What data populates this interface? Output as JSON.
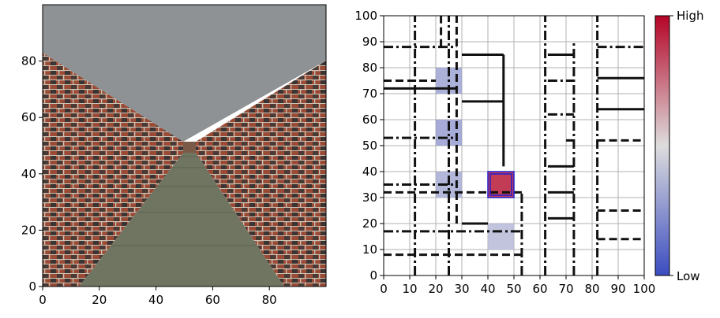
{
  "chart_data": [
    {
      "type": "image",
      "panel": "first-person-view",
      "xlim": [
        0,
        100
      ],
      "ylim": [
        0,
        100
      ],
      "x_ticks": [
        0,
        20,
        40,
        60,
        80
      ],
      "y_ticks": [
        0,
        20,
        40,
        60,
        80
      ],
      "colors": {
        "ceiling": "#8e9294",
        "floor": "#6f7560",
        "brick": "#9a4a35",
        "mortar": "#c9c3b4",
        "dark_brick": "#3b3432"
      }
    },
    {
      "type": "heatmap",
      "panel": "maze-map",
      "xlim": [
        0,
        100
      ],
      "ylim": [
        0,
        100
      ],
      "x_ticks": [
        0,
        10,
        20,
        30,
        40,
        50,
        60,
        70,
        80,
        90,
        100
      ],
      "y_ticks": [
        0,
        10,
        20,
        30,
        40,
        50,
        60,
        70,
        80,
        90,
        100
      ],
      "grid": true,
      "cells": [
        {
          "x": [
            20,
            30
          ],
          "y": [
            70,
            80
          ],
          "value": 0.3
        },
        {
          "x": [
            20,
            30
          ],
          "y": [
            50,
            60
          ],
          "value": 0.28
        },
        {
          "x": [
            20,
            30
          ],
          "y": [
            30,
            40
          ],
          "value": 0.33
        },
        {
          "x": [
            40,
            50
          ],
          "y": [
            10,
            20
          ],
          "value": 0.38
        },
        {
          "x": [
            40,
            50
          ],
          "y": [
            30,
            40
          ],
          "value": 0.95
        }
      ],
      "highlight": {
        "x": [
          40,
          50
        ],
        "y": [
          30,
          40
        ],
        "color": "#1f1fd0"
      },
      "walls": [
        {
          "x1": 0,
          "y1": 88,
          "x2": 28,
          "y2": 88,
          "style": "dashdot"
        },
        {
          "x1": 0,
          "y1": 75,
          "x2": 20,
          "y2": 75,
          "style": "dashed"
        },
        {
          "x1": 0,
          "y1": 72,
          "x2": 28,
          "y2": 72,
          "style": "solid"
        },
        {
          "x1": 0,
          "y1": 53,
          "x2": 28,
          "y2": 53,
          "style": "dashdot"
        },
        {
          "x1": 0,
          "y1": 35,
          "x2": 28,
          "y2": 35,
          "style": "dashdot"
        },
        {
          "x1": 0,
          "y1": 32,
          "x2": 53,
          "y2": 32,
          "style": "dashed"
        },
        {
          "x1": 0,
          "y1": 17,
          "x2": 53,
          "y2": 17,
          "style": "dashdot"
        },
        {
          "x1": 0,
          "y1": 8,
          "x2": 53,
          "y2": 8,
          "style": "dashed"
        },
        {
          "x1": 30,
          "y1": 85,
          "x2": 46,
          "y2": 85,
          "style": "solid"
        },
        {
          "x1": 30,
          "y1": 67,
          "x2": 46,
          "y2": 67,
          "style": "solid"
        },
        {
          "x1": 30,
          "y1": 20,
          "x2": 40,
          "y2": 20,
          "style": "solid"
        },
        {
          "x1": 12,
          "y1": 0,
          "x2": 12,
          "y2": 100,
          "style": "dashdot"
        },
        {
          "x1": 22,
          "y1": 88,
          "x2": 22,
          "y2": 100,
          "style": "dashed"
        },
        {
          "x1": 25,
          "y1": 0,
          "x2": 25,
          "y2": 100,
          "style": "dashdot"
        },
        {
          "x1": 28,
          "y1": 20,
          "x2": 28,
          "y2": 100,
          "style": "dashed"
        },
        {
          "x1": 46,
          "y1": 67,
          "x2": 46,
          "y2": 85,
          "style": "solid"
        },
        {
          "x1": 46,
          "y1": 42,
          "x2": 46,
          "y2": 67,
          "style": "solid"
        },
        {
          "x1": 53,
          "y1": 0,
          "x2": 53,
          "y2": 32,
          "style": "dashdot"
        },
        {
          "x1": 62,
          "y1": 0,
          "x2": 62,
          "y2": 100,
          "style": "dashdot"
        },
        {
          "x1": 63,
          "y1": 85,
          "x2": 73,
          "y2": 85,
          "style": "solid"
        },
        {
          "x1": 63,
          "y1": 75,
          "x2": 73,
          "y2": 75,
          "style": "dashdot"
        },
        {
          "x1": 63,
          "y1": 62,
          "x2": 73,
          "y2": 62,
          "style": "dashdot"
        },
        {
          "x1": 63,
          "y1": 42,
          "x2": 73,
          "y2": 42,
          "style": "solid"
        },
        {
          "x1": 63,
          "y1": 32,
          "x2": 73,
          "y2": 32,
          "style": "solid"
        },
        {
          "x1": 63,
          "y1": 22,
          "x2": 73,
          "y2": 22,
          "style": "solid"
        },
        {
          "x1": 70,
          "y1": 52,
          "x2": 73,
          "y2": 52,
          "style": "dashdot"
        },
        {
          "x1": 73,
          "y1": 0,
          "x2": 73,
          "y2": 90,
          "style": "dashdot"
        },
        {
          "x1": 82,
          "y1": 0,
          "x2": 82,
          "y2": 100,
          "style": "dashdot"
        },
        {
          "x1": 82,
          "y1": 88,
          "x2": 100,
          "y2": 88,
          "style": "dashdot"
        },
        {
          "x1": 82,
          "y1": 76,
          "x2": 100,
          "y2": 76,
          "style": "solid"
        },
        {
          "x1": 82,
          "y1": 64,
          "x2": 100,
          "y2": 64,
          "style": "solid"
        },
        {
          "x1": 82,
          "y1": 52,
          "x2": 100,
          "y2": 52,
          "style": "dashed"
        },
        {
          "x1": 82,
          "y1": 25,
          "x2": 100,
          "y2": 25,
          "style": "dashed"
        },
        {
          "x1": 82,
          "y1": 14,
          "x2": 100,
          "y2": 14,
          "style": "dashed"
        }
      ]
    }
  ],
  "colorbar": {
    "high_label": "High",
    "low_label": "Low",
    "high_color": "#b40426",
    "mid_color": "#dddddd",
    "low_color": "#3b4cc0"
  }
}
